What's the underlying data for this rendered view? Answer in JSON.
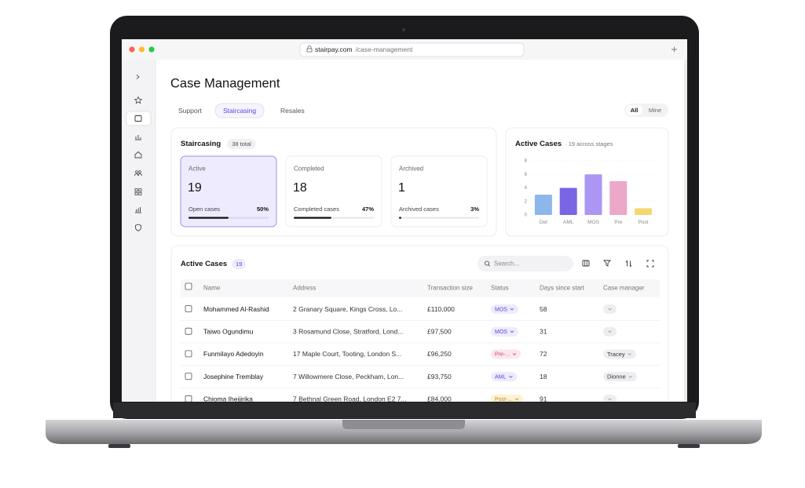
{
  "browser": {
    "domain": "stairpay.com",
    "path": "/case-management"
  },
  "page": {
    "title": "Case Management",
    "tabs": [
      "Support",
      "Staircasing",
      "Resales"
    ],
    "filter": [
      "All",
      "Mine"
    ]
  },
  "summary": {
    "title": "Staircasing",
    "badge": "38 total",
    "cards": [
      {
        "label": "Active",
        "count": 19,
        "footer": "Open cases",
        "percent": {
          "value": 50,
          "label": "50%"
        }
      },
      {
        "label": "Completed",
        "count": 18,
        "footer": "Completed cases",
        "percent": {
          "value": 47,
          "label": "47%"
        }
      },
      {
        "label": "Archived",
        "count": 1,
        "footer": "Archived cases",
        "percent": {
          "value": 3,
          "label": "3%"
        }
      }
    ]
  },
  "chart_data": {
    "type": "bar",
    "title": "Active Cases",
    "subtitle": "· 19 across stages",
    "categories": [
      "Det",
      "AML",
      "MOS",
      "Pre",
      "Post"
    ],
    "values": [
      3,
      4,
      6,
      5,
      1
    ],
    "colors": [
      "#8db7ea",
      "#7a66e2",
      "#ab96f3",
      "#eba8c8",
      "#f5d772"
    ],
    "ylim": [
      0,
      8
    ],
    "yticks": [
      0,
      2,
      4,
      6,
      8
    ],
    "grid": true
  },
  "table": {
    "title": "Active Cases",
    "count": 19,
    "search_placeholder": "Search...",
    "columns": [
      "Name",
      "Address",
      "Transaction size",
      "Status",
      "Days since start",
      "Case manager"
    ],
    "rows": [
      [
        "Mohammed Al-Rashid",
        "2 Granary Square, Kings Cross, Lo...",
        "£110,000",
        "MOS",
        "58",
        null
      ],
      [
        "Taiwo Ogundimu",
        "3 Rosamund Close, Stratford, Lond...",
        "£97,500",
        "MOS",
        "31",
        null
      ],
      [
        "Funmilayo Adedoyin",
        "17 Maple Court, Tooting, London S...",
        "£96,250",
        "Pre-...",
        "72",
        "Tracey"
      ],
      [
        "Josephine Tremblay",
        "7 Willowmere Close, Peckham, Lon...",
        "£93,750",
        "AML",
        "18",
        "Dionne"
      ],
      [
        "Chioma Iheijirika",
        "7 Bethnal Green Road, London E2 7...",
        "£84,000",
        "Post-...",
        "91",
        null
      ]
    ]
  }
}
